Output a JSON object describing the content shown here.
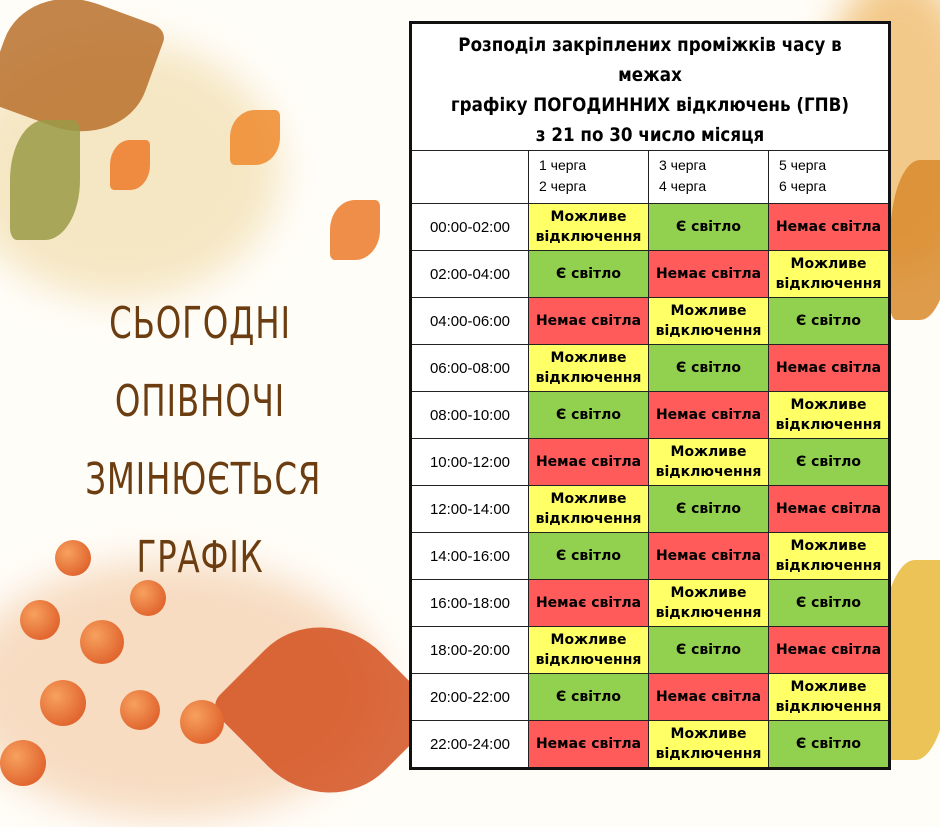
{
  "headline": [
    "СЬОГОДНІ",
    "ОПІВНОЧІ",
    "ЗМІНЮЄТЬСЯ",
    "ГРАФІК"
  ],
  "table": {
    "title": [
      "Розподіл закріплених проміжків часу в межах",
      "графіку ПОГОДИННИХ відключень (ГПВ)",
      "з 21 по 30 число місяця"
    ],
    "columns": [
      [
        "1 черга",
        "2 черга"
      ],
      [
        "3 черга",
        "4 черга"
      ],
      [
        "5 черга",
        "6 черга"
      ]
    ],
    "statuses": {
      "M": "Можливе відключення",
      "E": "Є світло",
      "N": "Немає світла"
    },
    "status_colors": {
      "M": "#ffff66",
      "E": "#92d050",
      "N": "#ff5b5b"
    },
    "rows": [
      {
        "time": "00:00-02:00",
        "cells": [
          "M",
          "E",
          "N"
        ]
      },
      {
        "time": "02:00-04:00",
        "cells": [
          "E",
          "N",
          "M"
        ]
      },
      {
        "time": "04:00-06:00",
        "cells": [
          "N",
          "M",
          "E"
        ]
      },
      {
        "time": "06:00-08:00",
        "cells": [
          "M",
          "E",
          "N"
        ]
      },
      {
        "time": "08:00-10:00",
        "cells": [
          "E",
          "N",
          "M"
        ]
      },
      {
        "time": "10:00-12:00",
        "cells": [
          "N",
          "M",
          "E"
        ]
      },
      {
        "time": "12:00-14:00",
        "cells": [
          "M",
          "E",
          "N"
        ]
      },
      {
        "time": "14:00-16:00",
        "cells": [
          "E",
          "N",
          "M"
        ]
      },
      {
        "time": "16:00-18:00",
        "cells": [
          "N",
          "M",
          "E"
        ]
      },
      {
        "time": "18:00-20:00",
        "cells": [
          "M",
          "E",
          "N"
        ]
      },
      {
        "time": "20:00-22:00",
        "cells": [
          "E",
          "N",
          "M"
        ]
      },
      {
        "time": "22:00-24:00",
        "cells": [
          "N",
          "M",
          "E"
        ]
      }
    ]
  }
}
